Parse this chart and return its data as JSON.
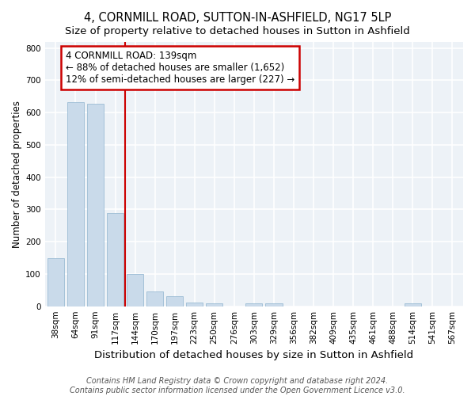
{
  "title": "4, CORNMILL ROAD, SUTTON-IN-ASHFIELD, NG17 5LP",
  "subtitle": "Size of property relative to detached houses in Sutton in Ashfield",
  "xlabel": "Distribution of detached houses by size in Sutton in Ashfield",
  "ylabel": "Number of detached properties",
  "categories": [
    "38sqm",
    "64sqm",
    "91sqm",
    "117sqm",
    "144sqm",
    "170sqm",
    "197sqm",
    "223sqm",
    "250sqm",
    "276sqm",
    "303sqm",
    "329sqm",
    "356sqm",
    "382sqm",
    "409sqm",
    "435sqm",
    "461sqm",
    "488sqm",
    "514sqm",
    "541sqm",
    "567sqm"
  ],
  "values": [
    148,
    633,
    628,
    288,
    100,
    45,
    30,
    12,
    8,
    0,
    8,
    8,
    0,
    0,
    0,
    0,
    0,
    0,
    8,
    0,
    0
  ],
  "bar_color": "#c9daea",
  "bar_edgecolor": "#9bbcd4",
  "vline_x_index": 3.5,
  "vline_color": "#cc0000",
  "annotation_text": "4 CORNMILL ROAD: 139sqm\n← 88% of detached houses are smaller (1,652)\n12% of semi-detached houses are larger (227) →",
  "annotation_box_facecolor": "#ffffff",
  "annotation_box_edgecolor": "#cc0000",
  "ylim": [
    0,
    820
  ],
  "yticks": [
    0,
    100,
    200,
    300,
    400,
    500,
    600,
    700,
    800
  ],
  "plot_bg_color": "#edf2f7",
  "grid_color": "#ffffff",
  "fig_bg_color": "#ffffff",
  "footnote": "Contains HM Land Registry data © Crown copyright and database right 2024.\nContains public sector information licensed under the Open Government Licence v3.0.",
  "title_fontsize": 10.5,
  "subtitle_fontsize": 9.5,
  "xlabel_fontsize": 9.5,
  "ylabel_fontsize": 8.5,
  "tick_fontsize": 7.5,
  "annotation_fontsize": 8.5,
  "footnote_fontsize": 7.0
}
